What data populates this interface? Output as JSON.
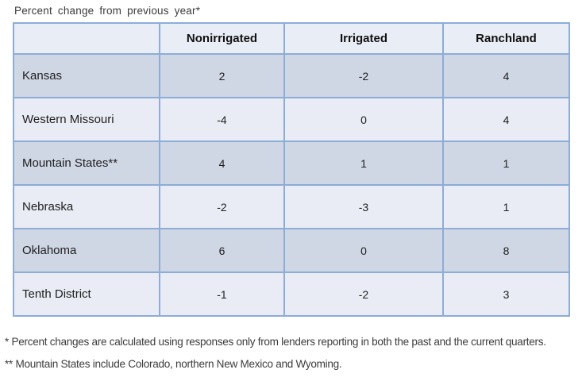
{
  "title": "Percent change from previous year*",
  "table": {
    "columns": [
      "",
      "Nonirrigated",
      "Irrigated",
      "Ranchland"
    ],
    "rows": [
      {
        "label": "Kansas",
        "values": [
          "2",
          "-2",
          "4"
        ]
      },
      {
        "label": "Western Missouri",
        "values": [
          "-4",
          "0",
          "4"
        ]
      },
      {
        "label": "Mountain States**",
        "values": [
          "4",
          "1",
          "1"
        ]
      },
      {
        "label": "Nebraska",
        "values": [
          "-2",
          "-3",
          "1"
        ]
      },
      {
        "label": "Oklahoma",
        "values": [
          "6",
          "0",
          "8"
        ]
      },
      {
        "label": "Tenth District",
        "values": [
          "-1",
          "-2",
          "3"
        ]
      }
    ]
  },
  "footnotes": [
    "* Percent changes are calculated using responses only from lenders reporting in both the past and the current quarters.",
    "** Mountain States include Colorado, northern New Mexico and Wyoming."
  ],
  "colors": {
    "border_blue": "#8cadd8",
    "outer_border_blue": "#7fa1cd",
    "header_bg": "#e9edf6",
    "row_dark_bg": "#cfd6e4",
    "row_light_bg": "#e9ecf4",
    "text": "#1f1f1f"
  },
  "chart_data": {
    "type": "table",
    "title": "Percent change from previous year*",
    "categories": [
      "Kansas",
      "Western Missouri",
      "Mountain States**",
      "Nebraska",
      "Oklahoma",
      "Tenth District"
    ],
    "series": [
      {
        "name": "Nonirrigated",
        "values": [
          2,
          -4,
          4,
          -2,
          6,
          -1
        ]
      },
      {
        "name": "Irrigated",
        "values": [
          -2,
          0,
          1,
          -3,
          0,
          -2
        ]
      },
      {
        "name": "Ranchland",
        "values": [
          4,
          4,
          1,
          1,
          8,
          3
        ]
      }
    ],
    "footnotes": [
      "* Percent changes are calculated using responses only from lenders reporting in both the past and the current quarters.",
      "** Mountain States include Colorado, northern New Mexico and Wyoming."
    ]
  }
}
